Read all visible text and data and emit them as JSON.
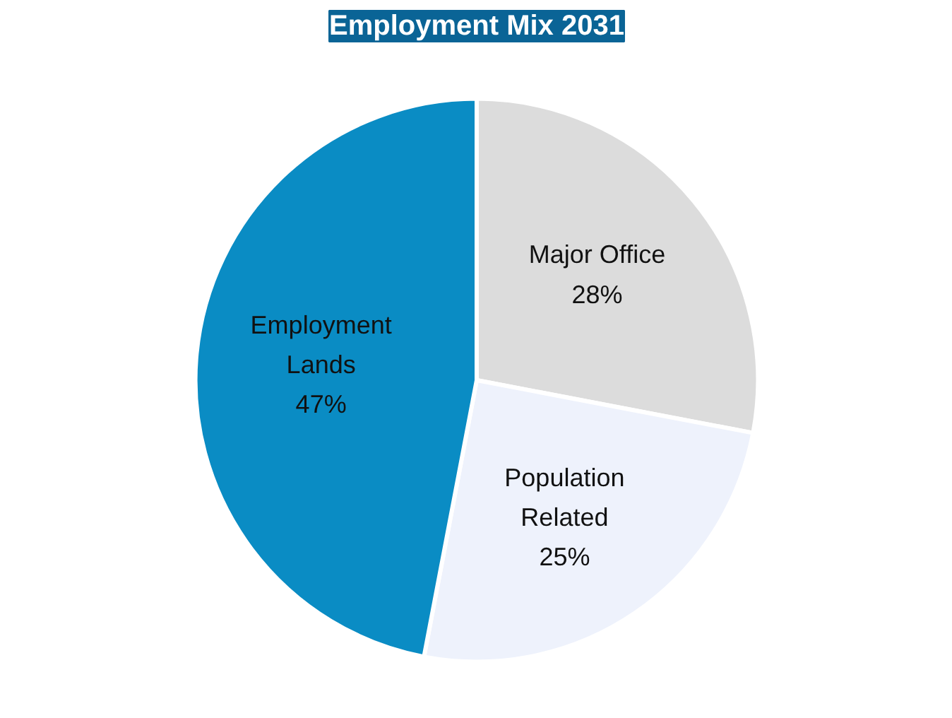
{
  "chart_data": {
    "type": "pie",
    "title": "Employment Mix 2031",
    "categories": [
      "Major Office",
      "Population Related",
      "Employment Lands"
    ],
    "values": [
      28,
      25,
      47
    ],
    "value_labels": [
      "28%",
      "25%",
      "47%"
    ],
    "colors": [
      "#dcdcdc",
      "#eef2fc",
      "#0a8cc4"
    ]
  }
}
